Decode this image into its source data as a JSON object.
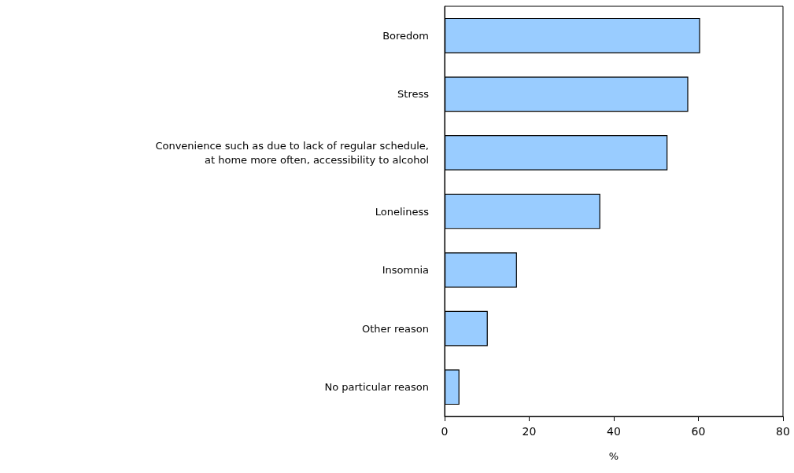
{
  "chart_data": {
    "type": "bar",
    "orientation": "horizontal",
    "xlabel": "%",
    "categories": [
      "Boredom",
      "Stress",
      "Convenience such as due to lack of regular schedule,\nat home more often, accessibility to alcohol",
      "Loneliness",
      "Insomnia",
      "Other reason",
      "No particular reason"
    ],
    "values": [
      60.4,
      57.6,
      52.7,
      36.8,
      17.1,
      10.2,
      3.5
    ],
    "color": "#99ccff",
    "xlim": [
      0,
      80
    ],
    "xticks": [
      0,
      20,
      40,
      60,
      80
    ],
    "grid": false
  }
}
